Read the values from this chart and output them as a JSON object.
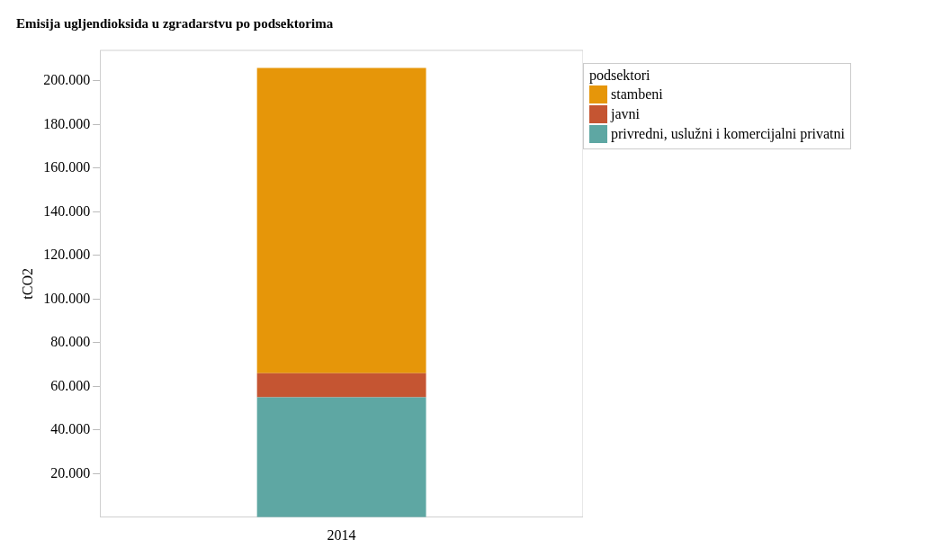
{
  "chart_data": {
    "type": "bar",
    "title": "Emisija ugljendioksida u zgradarstvu po podsektorima",
    "ylabel": "tCO2",
    "legend_title": "podsektori",
    "categories": [
      "2014"
    ],
    "stacked": true,
    "series": [
      {
        "name": "privredni, uslužni i komercijalni privatni",
        "color": "#5ea7a3",
        "values": [
          55000
        ]
      },
      {
        "name": "javni",
        "color": "#c55532",
        "values": [
          11000
        ]
      },
      {
        "name": "stambeni",
        "color": "#e69609",
        "values": [
          140000
        ]
      }
    ],
    "ylim": [
      0,
      214000
    ],
    "yticks": [
      {
        "value": 20000,
        "label": "20.000"
      },
      {
        "value": 40000,
        "label": "40.000"
      },
      {
        "value": 60000,
        "label": "60.000"
      },
      {
        "value": 80000,
        "label": "80.000"
      },
      {
        "value": 100000,
        "label": "100.000"
      },
      {
        "value": 120000,
        "label": "120.000"
      },
      {
        "value": 140000,
        "label": "140.000"
      },
      {
        "value": 160000,
        "label": "160.000"
      },
      {
        "value": 180000,
        "label": "180.000"
      },
      {
        "value": 200000,
        "label": "200.000"
      }
    ],
    "grid": false,
    "legend": "top right"
  }
}
